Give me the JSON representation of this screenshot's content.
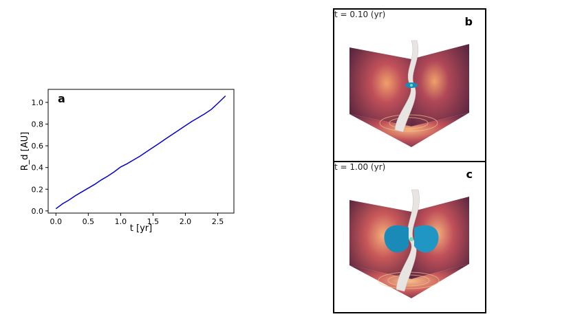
{
  "chart_data": {
    "type": "line",
    "panel_label": "a",
    "xlabel": "t [yr]",
    "ylabel": "R_d [AU]",
    "xlim": [
      -0.12,
      2.75
    ],
    "ylim": [
      -0.02,
      1.12
    ],
    "x_ticks": [
      0.0,
      0.5,
      1.0,
      1.5,
      2.0,
      2.5
    ],
    "x_tick_labels": [
      "0.0",
      "0.5",
      "1.0",
      "1.5",
      "2.0",
      "2.5"
    ],
    "y_ticks": [
      0.0,
      0.2,
      0.4,
      0.6,
      0.8,
      1.0
    ],
    "y_tick_labels": [
      "0.0",
      "0.2",
      "0.4",
      "0.6",
      "0.8",
      "1.0"
    ],
    "grid": false,
    "line_color": "#0000cc",
    "series": [
      {
        "x": [
          0.0,
          0.1,
          0.2,
          0.3,
          0.4,
          0.5,
          0.6,
          0.7,
          0.8,
          0.9,
          1.0,
          1.1,
          1.2,
          1.3,
          1.4,
          1.5,
          1.6,
          1.7,
          1.8,
          1.9,
          2.0,
          2.1,
          2.2,
          2.3,
          2.4,
          2.5,
          2.62
        ],
        "y": [
          0.02,
          0.065,
          0.1,
          0.14,
          0.175,
          0.21,
          0.245,
          0.285,
          0.32,
          0.36,
          0.405,
          0.435,
          0.47,
          0.505,
          0.545,
          0.585,
          0.625,
          0.665,
          0.705,
          0.745,
          0.785,
          0.825,
          0.86,
          0.895,
          0.935,
          0.99,
          1.06
        ]
      }
    ]
  },
  "panels": [
    {
      "letter": "b",
      "time_label": "t = 0.10 (yr)"
    },
    {
      "letter": "c",
      "time_label": "t = 1.00 (yr)"
    }
  ],
  "colors": {
    "wall_dark": "#5a2740",
    "wall_mid": "#9a3a4a",
    "wall_glow": "#e8855a",
    "disk_blue": "#1a8ab8",
    "jet_white": "#e8e4e2"
  }
}
